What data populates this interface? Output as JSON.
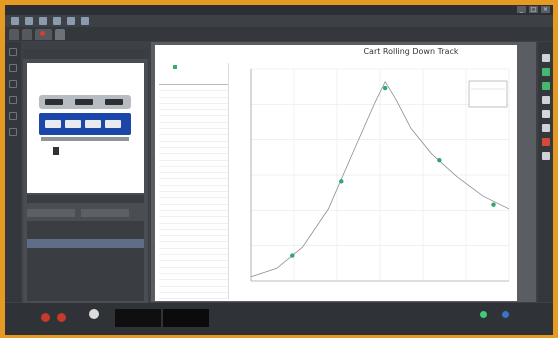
{
  "app": {
    "title": "",
    "window_buttons": [
      "_",
      "□",
      "×"
    ]
  },
  "tabs": [
    {
      "label": ""
    },
    {
      "label": ""
    },
    {
      "label": ""
    },
    {
      "label": ""
    }
  ],
  "left_panel": {
    "header": "",
    "status": "",
    "button_left": "",
    "button_right": "",
    "list_items": [
      "",
      "",
      "",
      "",
      ""
    ]
  },
  "graph": {
    "title": "Cart Rolling Down Track"
  },
  "table": {
    "legend_run1": "",
    "legend_run2": "",
    "col_x": "",
    "col_y": "",
    "rows": [
      [
        "",
        "",
        ""
      ],
      [
        "",
        "",
        ""
      ],
      [
        "",
        "",
        ""
      ],
      [
        "",
        "",
        ""
      ],
      [
        "",
        "",
        ""
      ],
      [
        "",
        "",
        ""
      ],
      [
        "",
        "",
        ""
      ],
      [
        "",
        "",
        ""
      ],
      [
        "",
        "",
        ""
      ],
      [
        "",
        "",
        ""
      ],
      [
        "",
        "",
        ""
      ],
      [
        "",
        "",
        ""
      ],
      [
        "",
        "",
        ""
      ],
      [
        "",
        "",
        ""
      ],
      [
        "",
        "",
        ""
      ],
      [
        "",
        "",
        ""
      ],
      [
        "",
        "",
        ""
      ],
      [
        "",
        "",
        ""
      ],
      [
        "",
        "",
        ""
      ],
      [
        "",
        "",
        ""
      ],
      [
        "",
        "",
        ""
      ],
      [
        "",
        "",
        ""
      ],
      [
        "",
        "",
        ""
      ],
      [
        "",
        "",
        ""
      ],
      [
        "",
        "",
        ""
      ],
      [
        "",
        "",
        ""
      ],
      [
        "",
        "",
        ""
      ],
      [
        "",
        "",
        ""
      ],
      [
        "",
        "",
        ""
      ],
      [
        "",
        "",
        ""
      ],
      [
        "",
        "",
        ""
      ],
      [
        "",
        "",
        ""
      ],
      [
        "",
        "",
        ""
      ],
      [
        "",
        "",
        ""
      ]
    ]
  },
  "bottom": {
    "timer": "",
    "logger": ""
  },
  "chart_data": {
    "type": "line",
    "title": "Cart Rolling Down Track",
    "xlabel": "",
    "ylabel": "",
    "x_ticks": [],
    "y_ticks": [],
    "ylim": [
      0,
      1
    ],
    "xlim": [
      0,
      1
    ],
    "grid": true,
    "legend": "top-right",
    "series": [
      {
        "x": [
          0.16,
          0.35,
          0.52,
          0.73,
          0.94
        ],
        "y": [
          0.12,
          0.47,
          0.91,
          0.57,
          0.36
        ]
      }
    ],
    "curve": {
      "x": [
        0.0,
        0.1,
        0.2,
        0.3,
        0.4,
        0.48,
        0.52,
        0.56,
        0.62,
        0.7,
        0.8,
        0.9,
        1.0
      ],
      "y": [
        0.02,
        0.06,
        0.16,
        0.34,
        0.62,
        0.84,
        0.94,
        0.86,
        0.72,
        0.6,
        0.49,
        0.4,
        0.34
      ]
    },
    "color": "#2fa66b",
    "curve_color": "#8a8f95"
  }
}
